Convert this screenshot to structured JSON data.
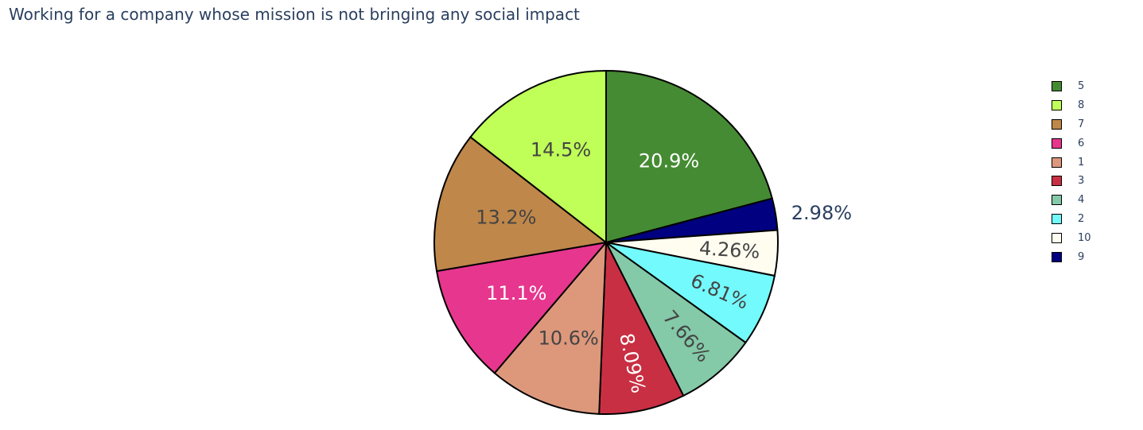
{
  "chart_data": {
    "type": "pie",
    "title": "Working for a company whose mission is not bringing any social impact",
    "slices": [
      {
        "label": "5",
        "value": 20.9,
        "text": "20.9%",
        "color": "#458B33",
        "text_color": "#ffffff"
      },
      {
        "label": "9",
        "value": 2.98,
        "text": "2.98%",
        "color": "#000080",
        "text_color": "#2a3f5f"
      },
      {
        "label": "10",
        "value": 4.26,
        "text": "4.26%",
        "color": "#FFFDF0",
        "text_color": "#444444"
      },
      {
        "label": "2",
        "value": 6.81,
        "text": "6.81%",
        "color": "#73FAFD",
        "text_color": "#444444"
      },
      {
        "label": "4",
        "value": 7.66,
        "text": "7.66%",
        "color": "#84C9A8",
        "text_color": "#444444"
      },
      {
        "label": "3",
        "value": 8.09,
        "text": "8.09%",
        "color": "#C92F43",
        "text_color": "#ffffff"
      },
      {
        "label": "1",
        "value": 10.6,
        "text": "10.6%",
        "color": "#DD987C",
        "text_color": "#444444"
      },
      {
        "label": "6",
        "value": 11.1,
        "text": "11.1%",
        "color": "#E7368E",
        "text_color": "#ffffff"
      },
      {
        "label": "7",
        "value": 13.2,
        "text": "13.2%",
        "color": "#C0874A",
        "text_color": "#444444"
      },
      {
        "label": "8",
        "value": 14.5,
        "text": "14.5%",
        "color": "#BFFF58",
        "text_color": "#444444"
      }
    ],
    "legend": {
      "placement": "right",
      "order": [
        "5",
        "8",
        "7",
        "6",
        "1",
        "3",
        "4",
        "2",
        "10",
        "9"
      ]
    }
  }
}
